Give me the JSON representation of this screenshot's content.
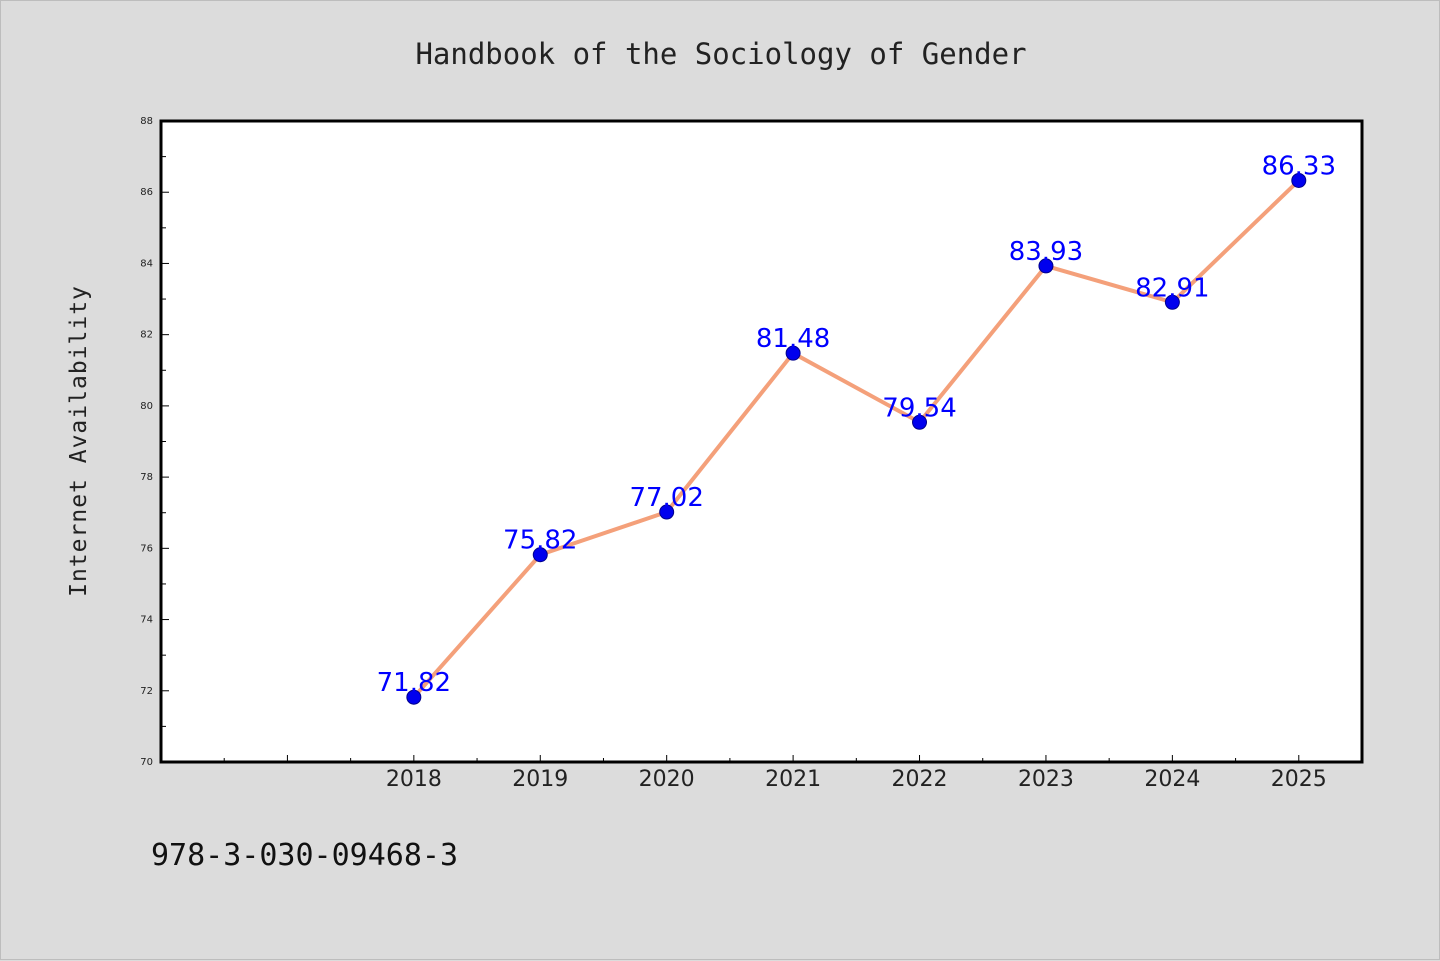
{
  "chart_data": {
    "type": "line",
    "title": "Handbook of the Sociology of Gender",
    "xlabel": "",
    "ylabel": "Internet Availability",
    "categories": [
      "2018",
      "2019",
      "2020",
      "2021",
      "2022",
      "2023",
      "2024",
      "2025"
    ],
    "series": [
      {
        "values": [
          71.82,
          75.82,
          77.02,
          81.48,
          79.54,
          83.93,
          82.91,
          86.33
        ],
        "labels": [
          "71.82",
          "75.82",
          "77.02",
          "81.48",
          "79.54",
          "83.93",
          "82.91",
          "86.33"
        ]
      }
    ],
    "ylim": [
      70,
      88
    ],
    "yticks": [
      "70",
      "72",
      "74",
      "76",
      "78",
      "80",
      "82",
      "84",
      "86",
      "88"
    ],
    "xlim": [
      2016,
      2025.5
    ],
    "grid": false,
    "colors": {
      "line": "#f4a07a",
      "marker": "#0000ee",
      "label": "#0000ff"
    }
  },
  "footnote": "978-3-030-09468-3"
}
